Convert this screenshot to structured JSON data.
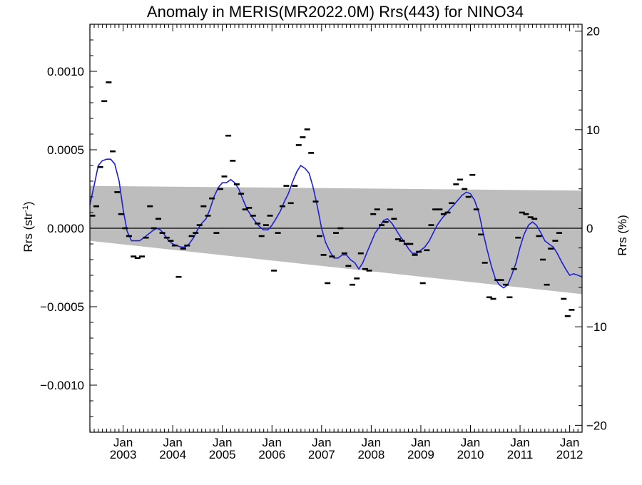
{
  "chart_data": {
    "type": "scatter",
    "title": "Anomaly in MERIS(MR2022.0M) Rrs(443) for NINO34",
    "ylabel_left": {
      "base": "Rrs (str",
      "sup": "-1",
      "close": ")"
    },
    "ylabel_right": "Rrs (%)",
    "xlim": [
      2002.33,
      2012.25
    ],
    "ylim": [
      -0.0013,
      0.0013
    ],
    "y2lim": [
      -20.7,
      20.7
    ],
    "x_ticks": [
      {
        "x": 2003.0,
        "top": "Jan",
        "bottom": "2003"
      },
      {
        "x": 2004.0,
        "top": "Jan",
        "bottom": "2004"
      },
      {
        "x": 2005.0,
        "top": "Jan",
        "bottom": "2005"
      },
      {
        "x": 2006.0,
        "top": "Jan",
        "bottom": "2006"
      },
      {
        "x": 2007.0,
        "top": "Jan",
        "bottom": "2007"
      },
      {
        "x": 2008.0,
        "top": "Jan",
        "bottom": "2008"
      },
      {
        "x": 2009.0,
        "top": "Jan",
        "bottom": "2009"
      },
      {
        "x": 2010.0,
        "top": "Jan",
        "bottom": "2010"
      },
      {
        "x": 2011.0,
        "top": "Jan",
        "bottom": "2011"
      },
      {
        "x": 2012.0,
        "top": "Jan",
        "bottom": "2012"
      }
    ],
    "y_ticks_left": [
      {
        "v": 0.001,
        "label": "0.0010"
      },
      {
        "v": 0.0005,
        "label": "0.0005"
      },
      {
        "v": 0.0,
        "label": "0.0000"
      },
      {
        "v": -0.0005,
        "label": "−0.0005"
      },
      {
        "v": -0.001,
        "label": "−0.0010"
      }
    ],
    "y_ticks_right": [
      {
        "v": 20,
        "label": "20"
      },
      {
        "v": 10,
        "label": "10"
      },
      {
        "v": 0,
        "label": "0"
      },
      {
        "v": -10,
        "label": "−10"
      },
      {
        "v": -20,
        "label": "−20"
      }
    ],
    "band": {
      "x": [
        2002.33,
        2012.25
      ],
      "upper": [
        0.00027,
        0.00024
      ],
      "lower": [
        -8e-05,
        -0.00042
      ]
    },
    "zero_line": 0,
    "series": [
      {
        "kind": "points",
        "color": "#000000",
        "points": [
          [
            2002.38,
            8e-05
          ],
          [
            2002.46,
            0.00014
          ],
          [
            2002.54,
            0.00039
          ],
          [
            2002.62,
            0.00081
          ],
          [
            2002.71,
            0.00093
          ],
          [
            2002.79,
            0.00049
          ],
          [
            2002.88,
            0.00023
          ],
          [
            2002.96,
            9e-05
          ],
          [
            2003.04,
            0.0
          ],
          [
            2003.12,
            -5e-05
          ],
          [
            2003.21,
            -0.00018
          ],
          [
            2003.29,
            -0.00019
          ],
          [
            2003.38,
            -0.00018
          ],
          [
            2003.46,
            -6e-05
          ],
          [
            2003.54,
            0.00014
          ],
          [
            2003.62,
            0.0
          ],
          [
            2003.71,
            6e-05
          ],
          [
            2003.79,
            -3e-05
          ],
          [
            2003.88,
            -6e-05
          ],
          [
            2003.96,
            -8e-05
          ],
          [
            2004.04,
            -0.00011
          ],
          [
            2004.12,
            -0.00031
          ],
          [
            2004.21,
            -0.00013
          ],
          [
            2004.29,
            -0.00011
          ],
          [
            2004.38,
            -5e-05
          ],
          [
            2004.46,
            -3e-05
          ],
          [
            2004.54,
            2e-05
          ],
          [
            2004.62,
            0.00014
          ],
          [
            2004.71,
            8e-05
          ],
          [
            2004.79,
            0.00019
          ],
          [
            2004.88,
            -3e-05
          ],
          [
            2004.96,
            0.00025
          ],
          [
            2005.04,
            0.00033
          ],
          [
            2005.12,
            0.00059
          ],
          [
            2005.21,
            0.00043
          ],
          [
            2005.29,
            0.00028
          ],
          [
            2005.38,
            0.00022
          ],
          [
            2005.46,
            0.00012
          ],
          [
            2005.54,
            0.00013
          ],
          [
            2005.62,
            8e-05
          ],
          [
            2005.71,
            3e-05
          ],
          [
            2005.79,
            -5e-05
          ],
          [
            2005.88,
            2e-05
          ],
          [
            2005.96,
            8e-05
          ],
          [
            2006.04,
            -0.00027
          ],
          [
            2006.12,
            -3e-05
          ],
          [
            2006.21,
            0.00014
          ],
          [
            2006.29,
            0.00027
          ],
          [
            2006.38,
            0.00016
          ],
          [
            2006.46,
            0.00027
          ],
          [
            2006.54,
            0.00053
          ],
          [
            2006.62,
            0.00058
          ],
          [
            2006.71,
            0.00063
          ],
          [
            2006.79,
            0.00048
          ],
          [
            2006.88,
            0.00017
          ],
          [
            2006.96,
            -5e-05
          ],
          [
            2007.04,
            -0.00017
          ],
          [
            2007.12,
            -0.00035
          ],
          [
            2007.21,
            -0.00018
          ],
          [
            2007.29,
            -3e-05
          ],
          [
            2007.38,
            0.0
          ],
          [
            2007.46,
            -0.00016
          ],
          [
            2007.54,
            -0.00024
          ],
          [
            2007.62,
            -0.00036
          ],
          [
            2007.71,
            -0.00032
          ],
          [
            2007.79,
            -0.00016
          ],
          [
            2007.88,
            -0.00026
          ],
          [
            2007.96,
            -0.00027
          ],
          [
            2008.04,
            9e-05
          ],
          [
            2008.12,
            0.00012
          ],
          [
            2008.21,
            2e-05
          ],
          [
            2008.29,
            4e-05
          ],
          [
            2008.38,
            0.00012
          ],
          [
            2008.46,
            6e-05
          ],
          [
            2008.54,
            -7e-05
          ],
          [
            2008.62,
            -8e-05
          ],
          [
            2008.71,
            -0.0001
          ],
          [
            2008.79,
            -0.0001
          ],
          [
            2008.88,
            -0.00017
          ],
          [
            2008.96,
            -0.00015
          ],
          [
            2009.04,
            -0.00035
          ],
          [
            2009.12,
            -0.00014
          ],
          [
            2009.21,
            2e-05
          ],
          [
            2009.29,
            0.00012
          ],
          [
            2009.38,
            0.00012
          ],
          [
            2009.46,
            9e-05
          ],
          [
            2009.54,
            0.0001
          ],
          [
            2009.62,
            0.00016
          ],
          [
            2009.71,
            0.00028
          ],
          [
            2009.79,
            0.00031
          ],
          [
            2009.88,
            0.00025
          ],
          [
            2009.96,
            0.0002
          ],
          [
            2010.04,
            0.00034
          ],
          [
            2010.12,
            0.00012
          ],
          [
            2010.21,
            -4e-05
          ],
          [
            2010.29,
            -0.00022
          ],
          [
            2010.38,
            -0.00044
          ],
          [
            2010.46,
            -0.00045
          ],
          [
            2010.54,
            -0.00033
          ],
          [
            2010.62,
            -0.00033
          ],
          [
            2010.71,
            -0.00036
          ],
          [
            2010.79,
            -0.00044
          ],
          [
            2010.88,
            -0.00026
          ],
          [
            2010.96,
            -6e-05
          ],
          [
            2011.04,
            0.0001
          ],
          [
            2011.12,
            9e-05
          ],
          [
            2011.21,
            7e-05
          ],
          [
            2011.29,
            6e-05
          ],
          [
            2011.38,
            -5e-05
          ],
          [
            2011.46,
            -0.0002
          ],
          [
            2011.54,
            -0.00036
          ],
          [
            2011.62,
            -0.00013
          ],
          [
            2011.71,
            -8e-05
          ],
          [
            2011.79,
            -3e-05
          ],
          [
            2011.88,
            -0.00045
          ],
          [
            2011.96,
            -0.00056
          ],
          [
            2012.04,
            -0.00052
          ]
        ]
      },
      {
        "kind": "smoothed",
        "color": "#1f1fd6",
        "points": [
          [
            2002.33,
            0.00015
          ],
          [
            2002.42,
            0.00028
          ],
          [
            2002.5,
            0.0004
          ],
          [
            2002.58,
            0.00043
          ],
          [
            2002.67,
            0.00044
          ],
          [
            2002.75,
            0.00044
          ],
          [
            2002.83,
            0.00041
          ],
          [
            2002.92,
            0.0003
          ],
          [
            2003.0,
            0.00012
          ],
          [
            2003.08,
            -2e-05
          ],
          [
            2003.17,
            -8e-05
          ],
          [
            2003.25,
            -8e-05
          ],
          [
            2003.33,
            -8e-05
          ],
          [
            2003.42,
            -6e-05
          ],
          [
            2003.5,
            -4e-05
          ],
          [
            2003.58,
            -2e-05
          ],
          [
            2003.67,
            0.0
          ],
          [
            2003.75,
            -1e-05
          ],
          [
            2003.83,
            -4e-05
          ],
          [
            2003.92,
            -8e-05
          ],
          [
            2004.0,
            -0.0001
          ],
          [
            2004.08,
            -0.00011
          ],
          [
            2004.17,
            -0.00012
          ],
          [
            2004.25,
            -0.00012
          ],
          [
            2004.33,
            -0.0001
          ],
          [
            2004.42,
            -6e-05
          ],
          [
            2004.5,
            -1e-05
          ],
          [
            2004.58,
            3e-05
          ],
          [
            2004.67,
            6e-05
          ],
          [
            2004.75,
            0.00012
          ],
          [
            2004.83,
            0.0002
          ],
          [
            2004.92,
            0.00026
          ],
          [
            2005.0,
            0.00029
          ],
          [
            2005.08,
            0.00029
          ],
          [
            2005.17,
            0.00031
          ],
          [
            2005.25,
            0.00029
          ],
          [
            2005.33,
            0.00025
          ],
          [
            2005.42,
            0.00018
          ],
          [
            2005.5,
            0.00012
          ],
          [
            2005.58,
            8e-05
          ],
          [
            2005.67,
            4e-05
          ],
          [
            2005.75,
            1e-05
          ],
          [
            2005.83,
            -1e-05
          ],
          [
            2005.92,
            -1e-05
          ],
          [
            2006.0,
            2e-05
          ],
          [
            2006.08,
            6e-05
          ],
          [
            2006.17,
            0.00011
          ],
          [
            2006.25,
            0.00017
          ],
          [
            2006.33,
            0.00022
          ],
          [
            2006.42,
            0.0003
          ],
          [
            2006.5,
            0.00036
          ],
          [
            2006.58,
            0.0004
          ],
          [
            2006.67,
            0.00038
          ],
          [
            2006.75,
            0.00035
          ],
          [
            2006.83,
            0.00026
          ],
          [
            2006.92,
            0.00013
          ],
          [
            2007.0,
            0.0
          ],
          [
            2007.08,
            -9e-05
          ],
          [
            2007.17,
            -0.00015
          ],
          [
            2007.25,
            -0.00019
          ],
          [
            2007.33,
            -0.00019
          ],
          [
            2007.42,
            -0.00017
          ],
          [
            2007.5,
            -0.00017
          ],
          [
            2007.58,
            -0.0002
          ],
          [
            2007.67,
            -0.00022
          ],
          [
            2007.75,
            -0.00026
          ],
          [
            2007.83,
            -0.00022
          ],
          [
            2007.92,
            -0.00015
          ],
          [
            2008.0,
            -9e-05
          ],
          [
            2008.08,
            -3e-05
          ],
          [
            2008.17,
            1e-05
          ],
          [
            2008.25,
            5e-05
          ],
          [
            2008.33,
            6e-05
          ],
          [
            2008.42,
            3e-05
          ],
          [
            2008.5,
            -1e-05
          ],
          [
            2008.58,
            -5e-05
          ],
          [
            2008.67,
            -9e-05
          ],
          [
            2008.75,
            -0.00013
          ],
          [
            2008.83,
            -0.00016
          ],
          [
            2008.92,
            -0.00016
          ],
          [
            2009.0,
            -0.00014
          ],
          [
            2009.08,
            -0.00012
          ],
          [
            2009.17,
            -8e-05
          ],
          [
            2009.25,
            -3e-05
          ],
          [
            2009.33,
            2e-05
          ],
          [
            2009.42,
            6e-05
          ],
          [
            2009.5,
            9e-05
          ],
          [
            2009.58,
            0.00012
          ],
          [
            2009.67,
            0.00015
          ],
          [
            2009.75,
            0.00018
          ],
          [
            2009.83,
            0.00021
          ],
          [
            2009.92,
            0.00023
          ],
          [
            2010.0,
            0.00022
          ],
          [
            2010.08,
            0.00018
          ],
          [
            2010.17,
            0.0001
          ],
          [
            2010.25,
            -2e-05
          ],
          [
            2010.33,
            -0.00013
          ],
          [
            2010.42,
            -0.00024
          ],
          [
            2010.5,
            -0.00032
          ],
          [
            2010.58,
            -0.00036
          ],
          [
            2010.67,
            -0.00038
          ],
          [
            2010.75,
            -0.00036
          ],
          [
            2010.83,
            -0.0003
          ],
          [
            2010.92,
            -0.00022
          ],
          [
            2011.0,
            -0.00012
          ],
          [
            2011.08,
            -4e-05
          ],
          [
            2011.17,
            2e-05
          ],
          [
            2011.25,
            4e-05
          ],
          [
            2011.33,
            2e-05
          ],
          [
            2011.42,
            -3e-05
          ],
          [
            2011.5,
            -8e-05
          ],
          [
            2011.58,
            -0.0001
          ],
          [
            2011.67,
            -0.00012
          ],
          [
            2011.75,
            -0.00016
          ],
          [
            2011.83,
            -0.00021
          ],
          [
            2011.92,
            -0.00026
          ],
          [
            2012.0,
            -0.0003
          ],
          [
            2012.08,
            -0.00029
          ],
          [
            2012.17,
            -0.0003
          ],
          [
            2012.25,
            -0.00031
          ]
        ]
      }
    ],
    "grid": false,
    "legend": "none"
  }
}
